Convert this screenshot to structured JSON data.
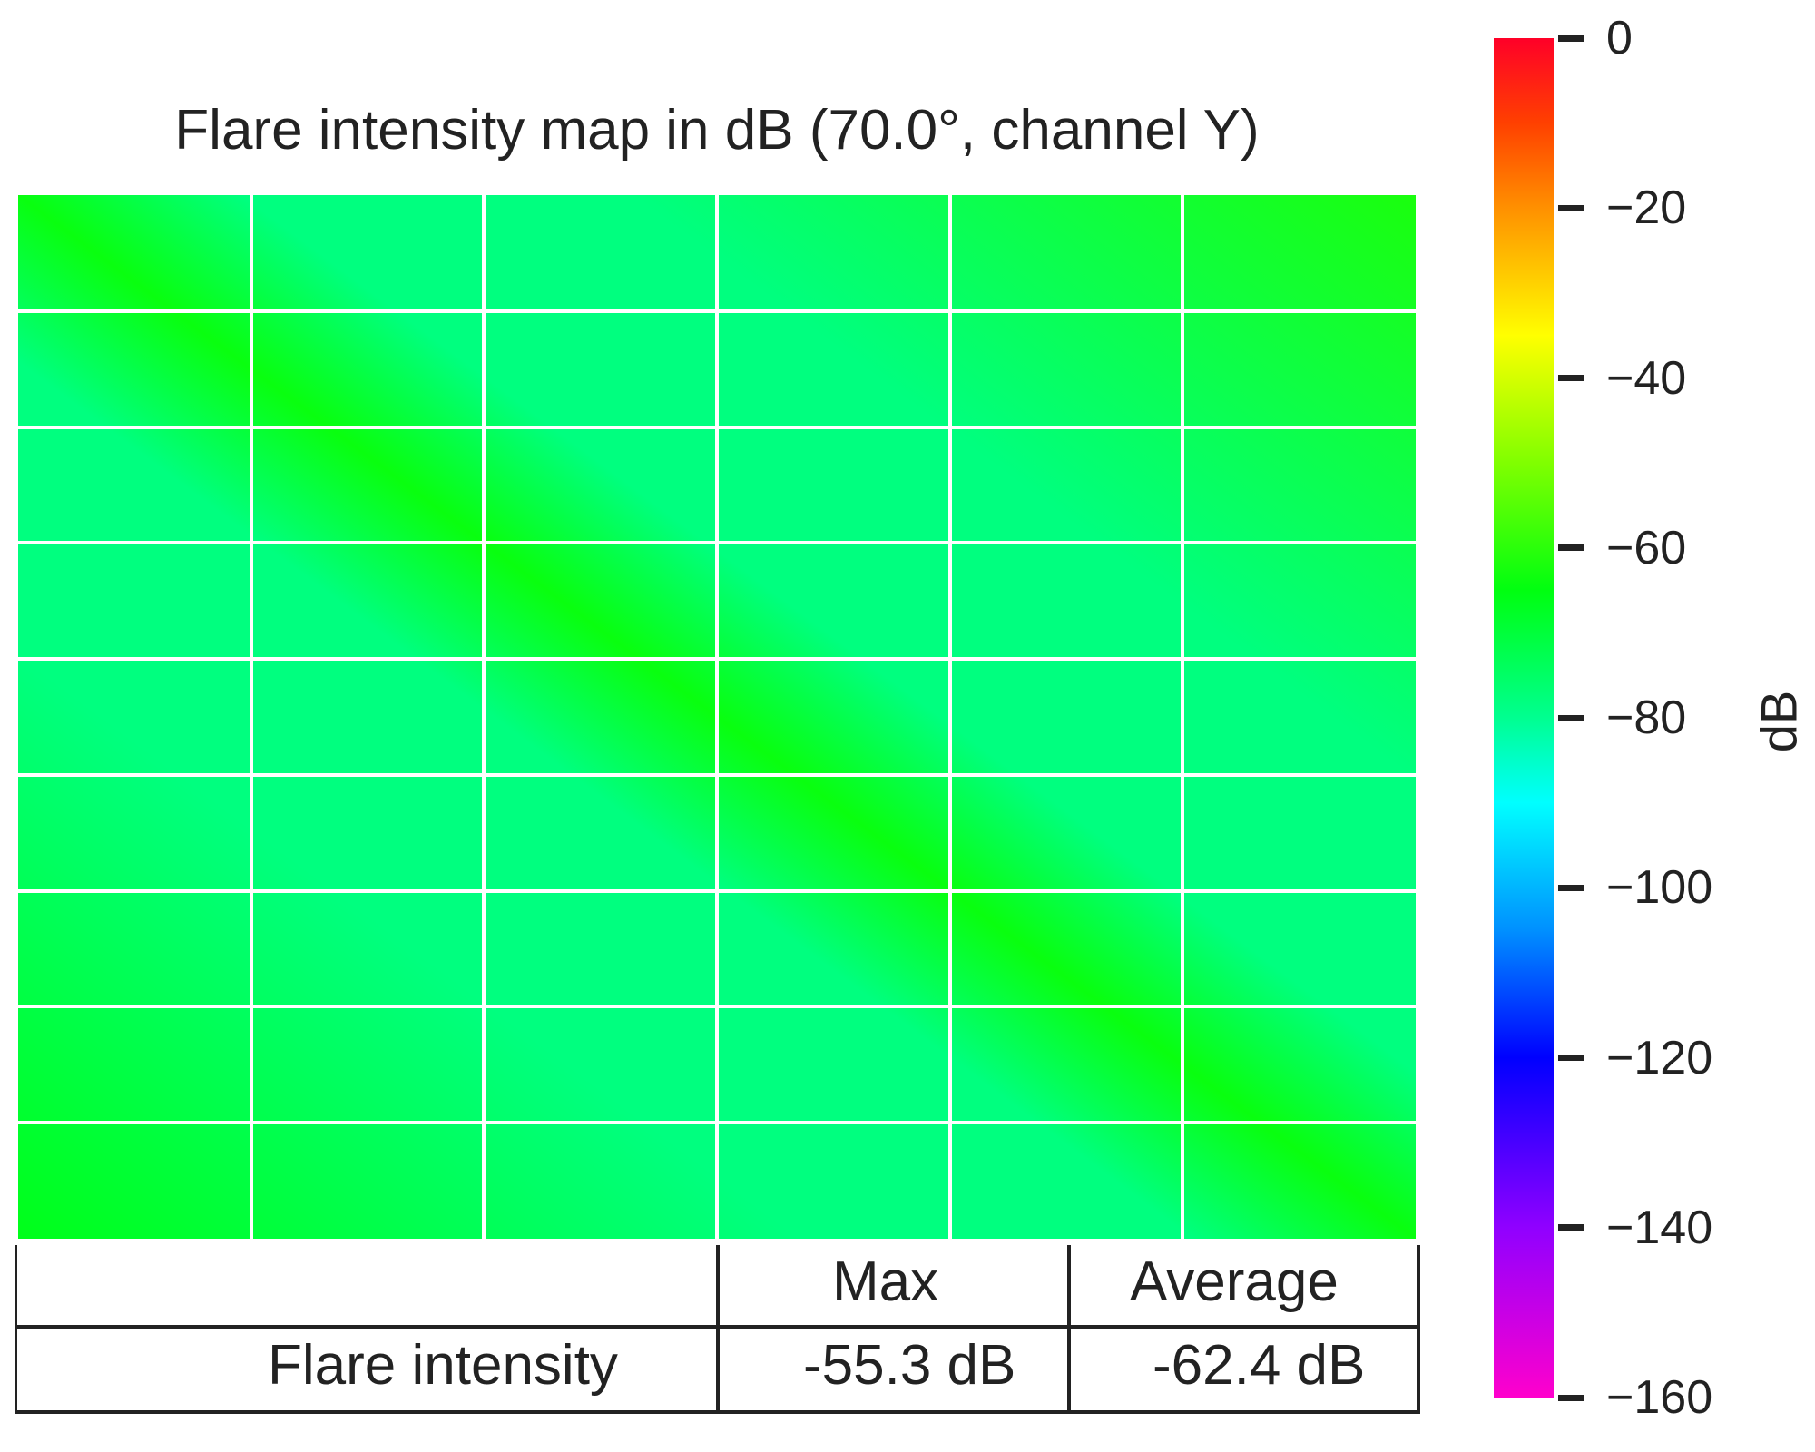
{
  "chart_data": {
    "type": "heatmap",
    "title": "Flare intensity map in dB (70.0°, channel Y)",
    "grid": {
      "rows": 9,
      "cols": 6
    },
    "field": {
      "background_db": -78,
      "diagonal_band_db": -64,
      "top_right_db": -62,
      "bottom_left_db": -66
    },
    "colorbar": {
      "label": "dB",
      "range": [
        -160,
        0
      ],
      "colormap": "gist_rainbow",
      "ticks": [
        0,
        -20,
        -40,
        -60,
        -80,
        -100,
        -120,
        -140,
        -160
      ],
      "tick_labels": [
        "0",
        "−20",
        "−40",
        "−60",
        "−80",
        "−100",
        "−120",
        "−140",
        "−160"
      ],
      "stops": [
        {
          "value": 0,
          "color": "#ff0028"
        },
        {
          "value": -10,
          "color": "#ff4000"
        },
        {
          "value": -20,
          "color": "#ff9000"
        },
        {
          "value": -35,
          "color": "#ffff00"
        },
        {
          "value": -50,
          "color": "#80ff00"
        },
        {
          "value": -65,
          "color": "#00ff10"
        },
        {
          "value": -80,
          "color": "#00ff90"
        },
        {
          "value": -90,
          "color": "#00ffff"
        },
        {
          "value": -105,
          "color": "#0090ff"
        },
        {
          "value": -120,
          "color": "#0000ff"
        },
        {
          "value": -140,
          "color": "#9000ff"
        },
        {
          "value": -160,
          "color": "#ff00cc"
        }
      ]
    }
  },
  "table": {
    "headers": [
      "",
      "Max",
      "Average"
    ],
    "rows": [
      {
        "label": "Flare intensity",
        "max": "-55.3 dB",
        "average": "-62.4 dB"
      }
    ]
  }
}
